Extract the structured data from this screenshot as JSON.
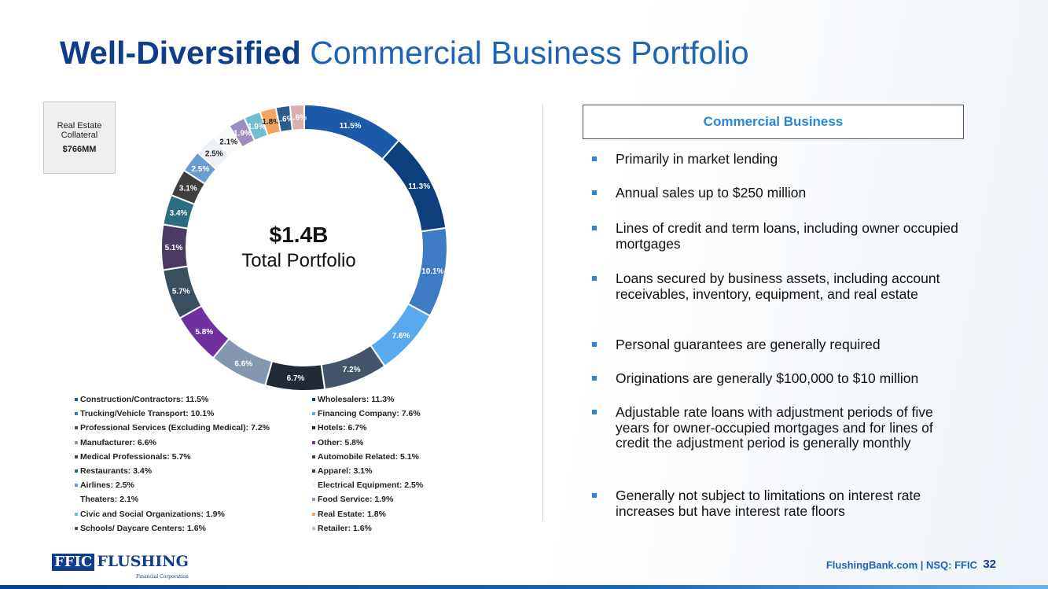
{
  "title": {
    "bold": "Well-Diversified",
    "rest": "Commercial Business Portfolio"
  },
  "collateral": {
    "label": "Real Estate Collateral",
    "value": "$766MM"
  },
  "center": {
    "value": "$1.4B",
    "label": "Total Portfolio"
  },
  "panel": {
    "heading": "Commercial Business",
    "bullets": [
      "Primarily in market lending",
      "Annual sales up to $250 million",
      "Lines of credit and term loans, including owner occupied mortgages",
      "Loans secured by business assets, including account receivables, inventory, equipment, and real estate",
      "Personal guarantees are generally required",
      "Originations are generally $100,000 to $10 million",
      "Adjustable rate loans with adjustment periods of five years for owner-occupied mortgages and for lines of credit the adjustment period is generally monthly",
      "Generally not subject to limitations on interest rate increases but have interest rate floors"
    ]
  },
  "footer": {
    "link": "FlushingBank.com  |  NSQ: FFIC",
    "page": "32"
  },
  "logo": {
    "ffic": "FFIC",
    "name": "FLUSHING",
    "sub": "Financial Corporation"
  },
  "chart_data": {
    "type": "pie",
    "donut": true,
    "categories": [
      "Construction/Contractors",
      "Wholesalers",
      "Trucking/Vehicle Transport",
      "Financing Company",
      "Professional Services (Excluding Medical)",
      "Hotels",
      "Manufacturer",
      "Other",
      "Medical Professionals",
      "Automobile Related",
      "Restaurants",
      "Apparel",
      "Airlines",
      "Electrical Equipment",
      "Theaters",
      "Food Service",
      "Civic and Social Organizations",
      "Real Estate",
      "Schools/ Daycare Centers",
      "Retailer"
    ],
    "values": [
      11.5,
      11.3,
      10.1,
      7.6,
      7.2,
      6.7,
      6.6,
      5.8,
      5.7,
      5.1,
      3.4,
      3.1,
      2.5,
      2.5,
      2.1,
      1.9,
      1.9,
      1.8,
      1.6,
      1.6
    ],
    "data_labels": [
      "11.5%",
      "11.3%",
      "10.1%",
      "7.6%",
      "7.2%",
      "6.7%",
      "6.6%",
      "5.8%",
      "5.7%",
      "5.1%",
      "3.4%",
      "3.1%",
      "2.5%",
      "2.5%",
      "2.1%",
      "1.9%",
      "1.9%",
      "1.8%",
      "1.6%",
      "1.6%"
    ],
    "legend_labels": [
      "Construction/Contractors: 11.5%",
      "Wholesalers: 11.3%",
      "Trucking/Vehicle Transport: 10.1%",
      "Financing Company: 7.6%",
      "Professional Services (Excluding Medical): 7.2%",
      "Hotels: 6.7%",
      "Manufacturer: 6.6%",
      "Other: 5.8%",
      "Medical Professionals: 5.7%",
      "Automobile Related: 5.1%",
      "Restaurants: 3.4%",
      "Apparel: 3.1%",
      "Airlines: 2.5%",
      "Electrical Equipment: 2.5%",
      "Theaters: 2.1%",
      "Food Service: 1.9%",
      "Civic and Social Organizations: 1.9%",
      "Real Estate: 1.8%",
      "Schools/ Daycare Centers: 1.6%",
      "Retailer: 1.6%"
    ],
    "colors": [
      "#1a5aa8",
      "#0d3f7c",
      "#3d7cc4",
      "#58a9ee",
      "#44546a",
      "#222a35",
      "#8497b0",
      "#7030a0",
      "#3b4e60",
      "#4b3a64",
      "#2b6c80",
      "#3f3f3f",
      "#6c9bd2",
      "#eef1f4",
      "#f7f9fb",
      "#9e8ec0",
      "#6fbfd0",
      "#f4a460",
      "#2e5c8a",
      "#d8b0b0"
    ],
    "legend_position": "bottom",
    "start_angle_deg": 0,
    "direction": "clockwise"
  }
}
